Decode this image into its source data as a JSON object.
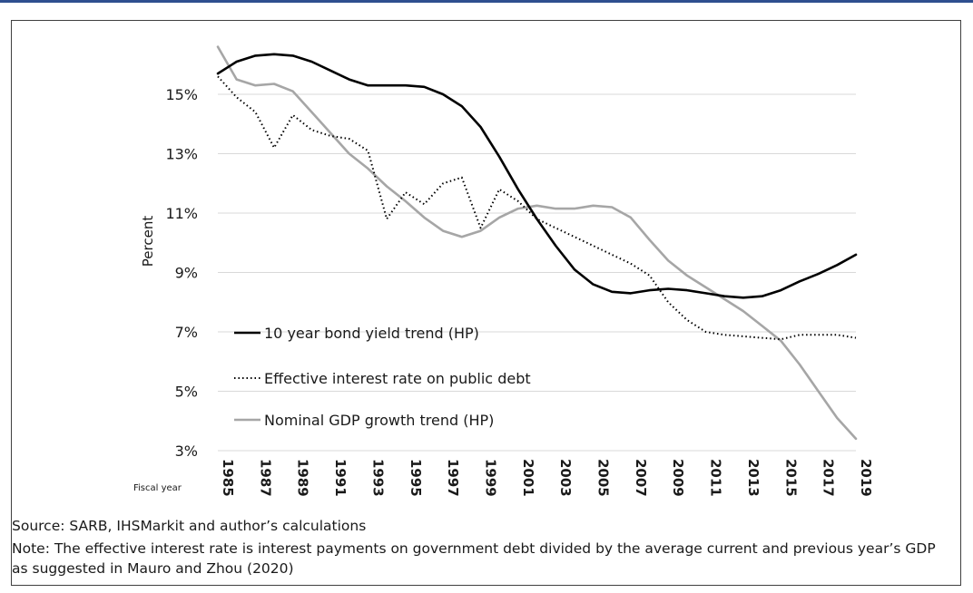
{
  "chart_data": {
    "type": "line",
    "title": "",
    "ylabel": "Percent",
    "xlabel": "Fiscal year",
    "ylim": [
      3,
      16.5
    ],
    "yticks": [
      3,
      5,
      7,
      9,
      11,
      13,
      15
    ],
    "ytick_labels": [
      "3%",
      "5%",
      "7%",
      "9%",
      "11%",
      "13%",
      "15%"
    ],
    "x": [
      1985,
      1986,
      1987,
      1988,
      1989,
      1990,
      1991,
      1992,
      1993,
      1994,
      1995,
      1996,
      1997,
      1998,
      1999,
      2000,
      2001,
      2002,
      2003,
      2004,
      2005,
      2006,
      2007,
      2008,
      2009,
      2010,
      2011,
      2012,
      2013,
      2014,
      2015,
      2016,
      2017,
      2018,
      2019
    ],
    "xtick_labels": [
      "1985",
      "1987",
      "1989",
      "1991",
      "1993",
      "1995",
      "1997",
      "1999",
      "2001",
      "2003",
      "2005",
      "2007",
      "2009",
      "2011",
      "2013",
      "2015",
      "2017",
      "2019"
    ],
    "grid": "horizontal",
    "legend_position": "lower-left",
    "series": [
      {
        "name": "10 year bond yield trend (HP)",
        "color": "#000000",
        "style": "solid",
        "values": [
          15.7,
          16.1,
          16.3,
          16.35,
          16.3,
          16.1,
          15.8,
          15.5,
          15.3,
          15.3,
          15.3,
          15.25,
          15.0,
          14.6,
          13.9,
          12.9,
          11.8,
          10.8,
          9.9,
          9.1,
          8.6,
          8.35,
          8.3,
          8.4,
          8.45,
          8.4,
          8.3,
          8.2,
          8.15,
          8.2,
          8.4,
          8.7,
          8.95,
          9.25,
          9.6
        ]
      },
      {
        "name": "Effective interest rate on public debt",
        "color": "#000000",
        "style": "dotted",
        "values": [
          15.6,
          14.9,
          14.4,
          13.2,
          14.3,
          13.8,
          13.6,
          13.5,
          13.1,
          10.8,
          11.7,
          11.3,
          12.0,
          12.2,
          10.5,
          11.8,
          11.4,
          10.8,
          10.5,
          10.2,
          9.9,
          9.6,
          9.3,
          8.9,
          8.0,
          7.4,
          7.0,
          6.9,
          6.85,
          6.8,
          6.75,
          6.9,
          6.9,
          6.9,
          6.8
        ]
      },
      {
        "name": "Nominal GDP growth trend (HP)",
        "color": "#a6a6a6",
        "style": "solid",
        "values": [
          16.6,
          15.5,
          15.3,
          15.35,
          15.1,
          14.4,
          13.7,
          13.0,
          12.5,
          11.9,
          11.4,
          10.85,
          10.4,
          10.2,
          10.4,
          10.85,
          11.15,
          11.25,
          11.15,
          11.15,
          11.25,
          11.2,
          10.85,
          10.1,
          9.4,
          8.9,
          8.5,
          8.1,
          7.7,
          7.2,
          6.7,
          5.9,
          5.0,
          4.1,
          3.4
        ]
      }
    ]
  },
  "source_text": "Source: SARB, IHSMarkit and author’s calculations",
  "note_text": "Note: The effective interest rate is interest payments on government debt divided by the average current and previous year’s GDP as suggested in Mauro and Zhou (2020)"
}
